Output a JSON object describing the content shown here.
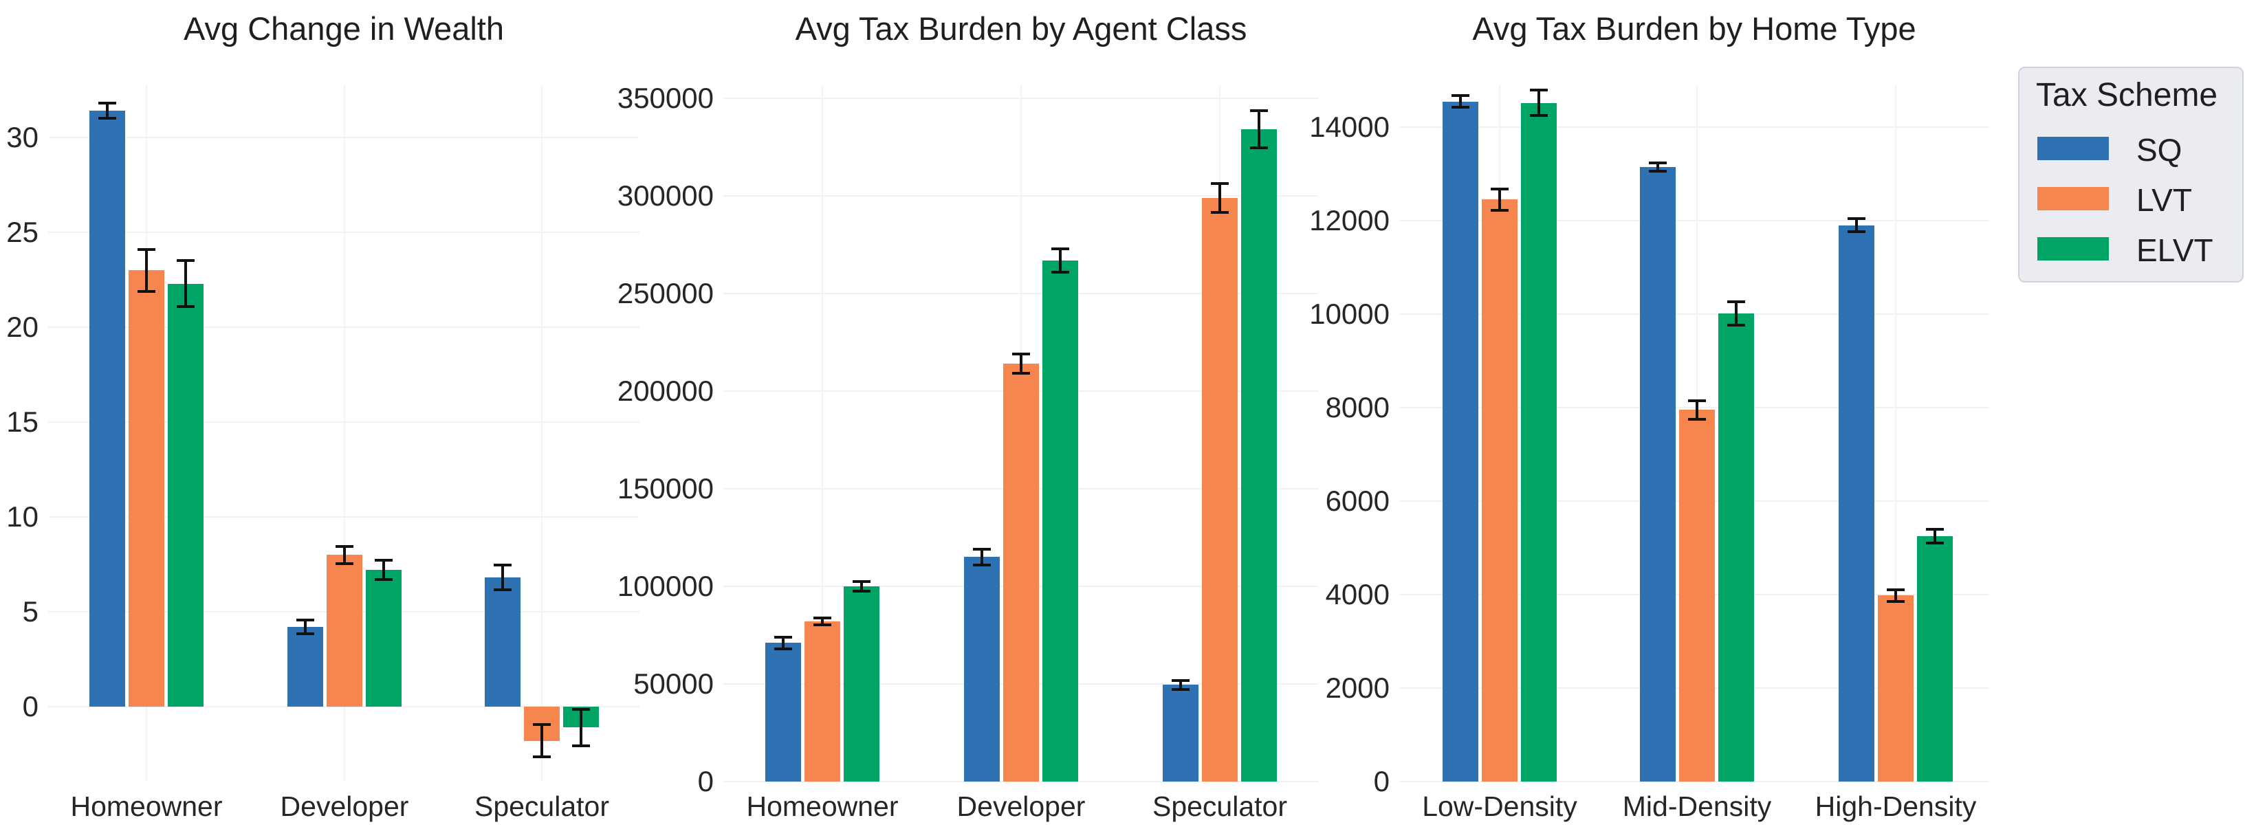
{
  "figure": {
    "background": "#ffffff",
    "text_color": "#262626"
  },
  "legend": {
    "title": "Tax Scheme",
    "position": "outside-top-right",
    "entries": [
      {
        "label": "SQ",
        "color": "#2E72B3"
      },
      {
        "label": "LVT",
        "color": "#F6854E"
      },
      {
        "label": "ELVT",
        "color": "#00A565"
      }
    ],
    "background": "#eaecf2",
    "border_color": "#d0d3db"
  },
  "colors": {
    "error_bar": "#111111",
    "gridline": "#f2f2f5"
  },
  "chart_data": [
    {
      "type": "bar",
      "title": "Avg Change in Wealth",
      "categories": [
        "Homeowner",
        "Developer",
        "Speculator"
      ],
      "series": [
        {
          "name": "SQ",
          "color": "#2E72B3",
          "values": [
            31.4,
            4.2,
            6.8
          ],
          "errors": [
            0.4,
            0.35,
            0.65
          ]
        },
        {
          "name": "LVT",
          "color": "#F6854E",
          "values": [
            23.0,
            8.0,
            -1.8
          ],
          "errors": [
            1.1,
            0.45,
            0.85
          ]
        },
        {
          "name": "ELVT",
          "color": "#00A565",
          "values": [
            22.3,
            7.2,
            -1.1
          ],
          "errors": [
            1.2,
            0.5,
            0.95
          ]
        }
      ],
      "xlabel": "",
      "ylabel": "",
      "yticks": [
        0,
        5,
        10,
        15,
        20,
        25,
        30
      ],
      "ylim": [
        -3.95,
        32.7
      ],
      "grid": "faint",
      "error_bars": true,
      "legend_shown": false
    },
    {
      "type": "bar",
      "title": "Avg Tax Burden by Agent Class",
      "categories": [
        "Homeowner",
        "Developer",
        "Speculator"
      ],
      "series": [
        {
          "name": "SQ",
          "color": "#2E72B3",
          "values": [
            71000,
            115000,
            49500
          ],
          "errors": [
            3000,
            4000,
            2200
          ]
        },
        {
          "name": "LVT",
          "color": "#F6854E",
          "values": [
            82000,
            214000,
            299000
          ],
          "errors": [
            1800,
            5000,
            7500
          ]
        },
        {
          "name": "ELVT",
          "color": "#00A565",
          "values": [
            100000,
            267000,
            334000
          ],
          "errors": [
            2500,
            6000,
            9500
          ]
        }
      ],
      "xlabel": "",
      "ylabel": "",
      "yticks": [
        0,
        50000,
        100000,
        150000,
        200000,
        250000,
        300000,
        350000
      ],
      "ylim": [
        0,
        356500
      ],
      "grid": "faint",
      "error_bars": true,
      "legend_shown": false
    },
    {
      "type": "bar",
      "title": "Avg Tax Burden by Home Type",
      "categories": [
        "Low-Density",
        "Mid-Density",
        "High-Density"
      ],
      "series": [
        {
          "name": "SQ",
          "color": "#2E72B3",
          "values": [
            14550,
            13150,
            11900
          ],
          "errors": [
            130,
            90,
            140
          ]
        },
        {
          "name": "LVT",
          "color": "#F6854E",
          "values": [
            12450,
            7950,
            3980
          ],
          "errors": [
            230,
            200,
            130
          ]
        },
        {
          "name": "ELVT",
          "color": "#00A565",
          "values": [
            14520,
            10020,
            5250
          ],
          "errors": [
            270,
            250,
            150
          ]
        }
      ],
      "xlabel": "",
      "ylabel": "",
      "yticks": [
        0,
        2000,
        4000,
        6000,
        8000,
        10000,
        12000,
        14000
      ],
      "ylim": [
        0,
        14880
      ],
      "grid": "faint",
      "error_bars": true,
      "legend_shown": false
    }
  ]
}
